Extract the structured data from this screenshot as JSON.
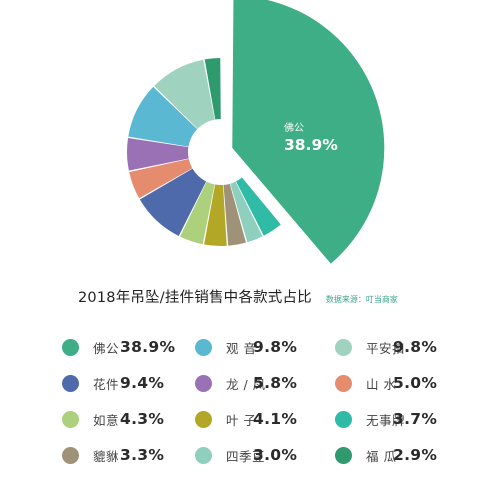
{
  "chart_data": {
    "type": "pie",
    "style": "donut, largest slice exploded",
    "title": "2018年吊坠/挂件销售中各款式占比",
    "source": "数据来源：叮当商家",
    "callout": {
      "label": "佛公",
      "value": "38.9%"
    },
    "slices": [
      {
        "label": "佛公",
        "display": "38.9%",
        "value": 38.9,
        "color": "#3dae86"
      },
      {
        "label": "观 音",
        "display": "9.8%",
        "value": 9.8,
        "color": "#5ab8d3"
      },
      {
        "label": "平安扣",
        "display": "9.8%",
        "value": 9.8,
        "color": "#9fd3c0"
      },
      {
        "label": "花件",
        "display": "9.4%",
        "value": 9.4,
        "color": "#4f6aaa"
      },
      {
        "label": "龙 / 凤",
        "display": "5.8%",
        "value": 5.8,
        "color": "#9b71b6"
      },
      {
        "label": "山 水",
        "display": "5.0%",
        "value": 5.0,
        "color": "#e58c6e"
      },
      {
        "label": "如意",
        "display": "4.3%",
        "value": 4.3,
        "color": "#acd07c"
      },
      {
        "label": "叶 子",
        "display": "4.1%",
        "value": 4.1,
        "color": "#b3a826"
      },
      {
        "label": "无事牌",
        "display": "3.7%",
        "value": 3.7,
        "color": "#2fbba6"
      },
      {
        "label": "貔貅",
        "display": "3.3%",
        "value": 3.3,
        "color": "#a09278"
      },
      {
        "label": "四季豆",
        "display": "3.0%",
        "value": 3.0,
        "color": "#8fcfbe"
      },
      {
        "label": "福 瓜",
        "display": "2.9%",
        "value": 2.9,
        "color": "#2f9a6e"
      }
    ],
    "draw_order": [
      0,
      8,
      10,
      9,
      7,
      6,
      3,
      5,
      4,
      1,
      2,
      11
    ]
  }
}
